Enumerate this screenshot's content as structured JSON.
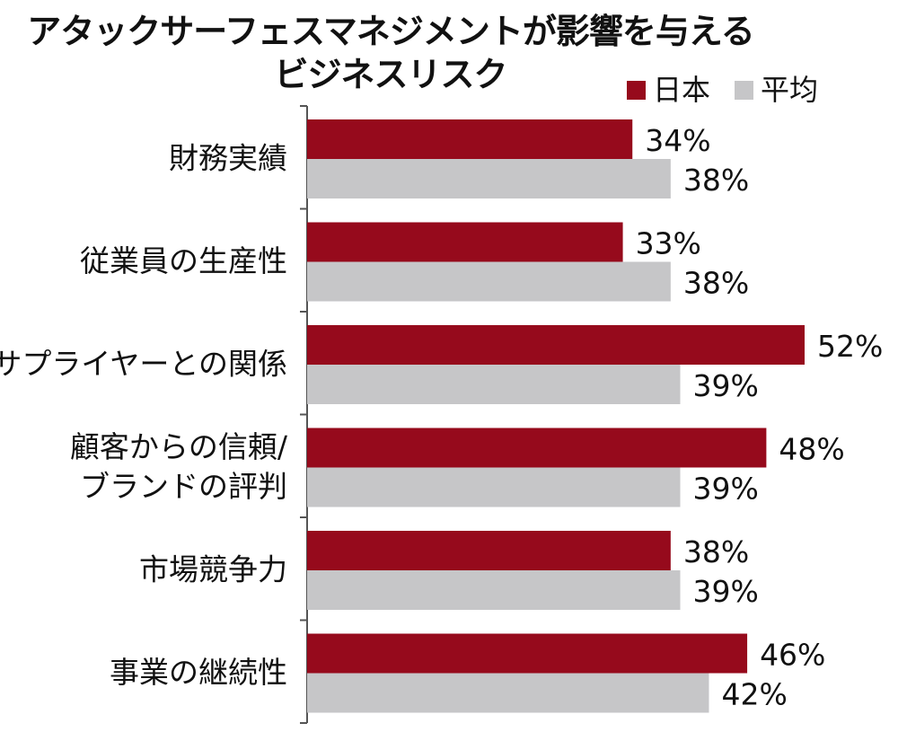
{
  "chart_data": {
    "type": "bar",
    "orientation": "horizontal",
    "title_lines": [
      "アタックサーフェスマネジメントが影響を与える",
      "ビジネスリスク"
    ],
    "categories": [
      [
        "財務実績"
      ],
      [
        "従業員の生産性"
      ],
      [
        "サプライヤーとの関係"
      ],
      [
        "顧客からの信頼/",
        "ブランドの評判"
      ],
      [
        "市場競争力"
      ],
      [
        "事業の継続性"
      ]
    ],
    "series": [
      {
        "name": "日本",
        "color": "#960A1C",
        "values": [
          34,
          33,
          52,
          48,
          38,
          46
        ],
        "labels": [
          "34%",
          "33%",
          "52%",
          "48%",
          "38%",
          "46%"
        ]
      },
      {
        "name": "平均",
        "color": "#C6C6C8",
        "values": [
          38,
          38,
          39,
          39,
          39,
          42
        ],
        "labels": [
          "38%",
          "38%",
          "39%",
          "39%",
          "39%",
          "42%"
        ]
      }
    ],
    "xlim": [
      0,
      52
    ],
    "xlabel": "",
    "ylabel": "",
    "grid": false,
    "legend": "top-right"
  }
}
